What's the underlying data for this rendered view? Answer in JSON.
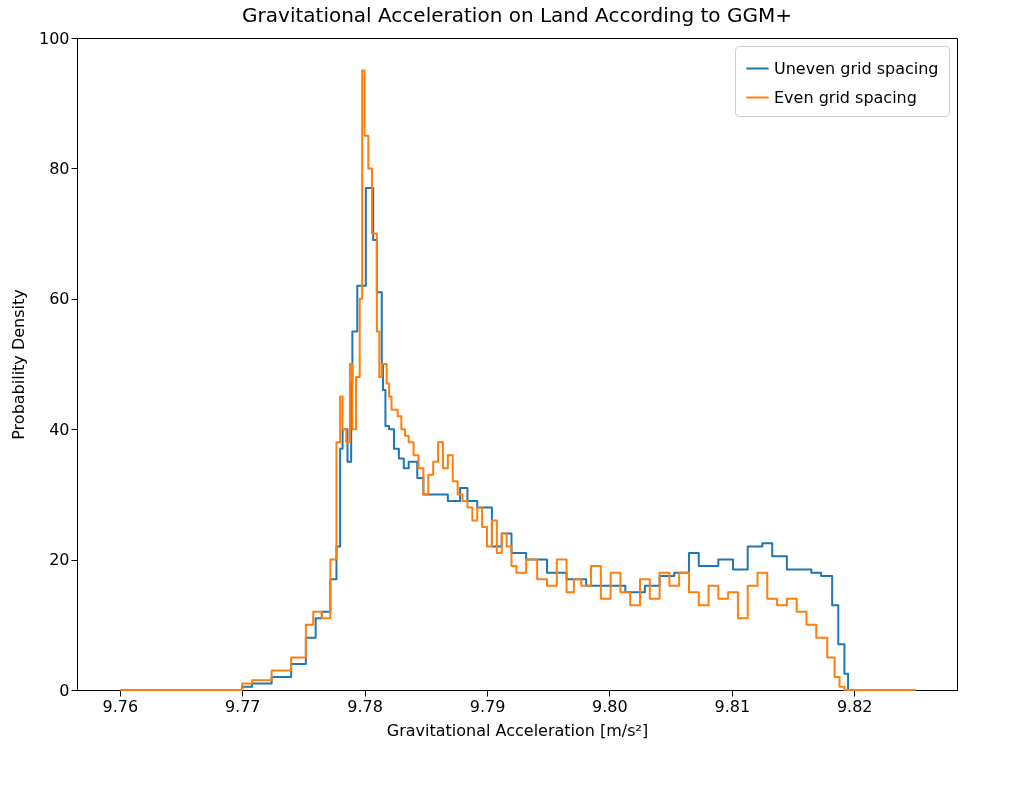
{
  "chart_data": {
    "type": "step",
    "title": "Gravitational Acceleration on Land According to GGM+",
    "xlabel": "Gravitational Acceleration [m/s²]",
    "ylabel": "Probability Density",
    "xlim": [
      9.7565,
      9.8284
    ],
    "ylim": [
      0,
      100
    ],
    "xticks": [
      9.76,
      9.77,
      9.78,
      9.79,
      {
        "value": 9.8,
        "label": "9.80"
      },
      9.81,
      9.82
    ],
    "yticks": [
      0,
      20,
      40,
      60,
      80,
      100
    ],
    "grid": false,
    "legend": "top right",
    "line_style": "solid",
    "marker": "none",
    "series": [
      {
        "name": "Uneven grid spacing",
        "color": "#1f77b4",
        "x": [
          9.76,
          9.77,
          9.7708,
          9.7724,
          9.774,
          9.7752,
          9.776,
          9.7765,
          9.7772,
          9.7777,
          9.778,
          9.7782,
          9.7786,
          9.7789,
          9.779,
          9.7794,
          9.7801,
          9.7807,
          9.781,
          9.7814,
          9.7815,
          9.7817,
          9.782,
          9.7824,
          9.7828,
          9.7832,
          9.7836,
          9.7843,
          9.7848,
          9.786,
          9.7868,
          9.7878,
          9.7884,
          9.7892,
          9.7904,
          9.7912,
          9.792,
          9.7932,
          9.7949,
          9.7965,
          9.7981,
          9.7989,
          9.8013,
          9.8029,
          9.8041,
          9.8053,
          9.8065,
          9.8073,
          9.8089,
          9.8101,
          9.8113,
          9.8125,
          9.8133,
          9.8145,
          9.8165,
          9.8173,
          9.8182,
          9.8187,
          9.8192,
          9.8195,
          9.825
        ],
        "values": [
          0,
          0.5,
          1,
          2,
          4,
          8,
          11,
          12,
          17,
          22,
          37,
          40,
          35,
          47,
          55,
          62,
          77,
          69,
          61,
          50,
          46,
          40.5,
          40,
          37,
          35.5,
          34,
          35,
          32.5,
          30,
          30,
          29,
          31,
          29,
          28,
          22,
          24,
          21,
          20,
          18,
          17,
          16,
          16,
          15,
          16,
          17.5,
          18,
          21,
          19,
          20,
          18.5,
          22,
          22.5,
          20.5,
          18.5,
          18,
          17.5,
          13,
          7,
          2.5,
          0,
          0
        ]
      },
      {
        "name": "Even grid spacing",
        "color": "#ff7f0e",
        "x": [
          9.76,
          9.77,
          9.7708,
          9.7724,
          9.774,
          9.7752,
          9.7758,
          9.7765,
          9.7772,
          9.7777,
          9.778,
          9.7782,
          9.7785,
          9.7788,
          9.779,
          9.7793,
          9.7796,
          9.7798,
          9.78,
          9.7803,
          9.7806,
          9.781,
          9.7812,
          9.7814,
          9.7818,
          9.782,
          9.7822,
          9.7827,
          9.783,
          9.7833,
          9.7836,
          9.784,
          9.7844,
          9.7848,
          9.7852,
          9.7856,
          9.786,
          9.7864,
          9.7868,
          9.7872,
          9.7876,
          9.788,
          9.7884,
          9.7888,
          9.7892,
          9.7896,
          9.79,
          9.7904,
          9.7908,
          9.7912,
          9.7916,
          9.792,
          9.7924,
          9.7932,
          9.7941,
          9.7949,
          9.7957,
          9.7965,
          9.7971,
          9.7977,
          9.7985,
          9.7993,
          9.8001,
          9.8009,
          9.8017,
          9.8025,
          9.8033,
          9.8041,
          9.8049,
          9.8057,
          9.8065,
          9.8073,
          9.8081,
          9.8089,
          9.8097,
          9.8105,
          9.8113,
          9.8121,
          9.8129,
          9.8137,
          9.8145,
          9.8153,
          9.8161,
          9.8169,
          9.8178,
          9.8184,
          9.8188,
          9.8192,
          9.8196,
          9.825
        ],
        "values": [
          0,
          1,
          1.5,
          3,
          5,
          10,
          12,
          11,
          20,
          38,
          45,
          40,
          38,
          50,
          40,
          48,
          60,
          95,
          85,
          80,
          70,
          55,
          48,
          50,
          47,
          45,
          43,
          42,
          40,
          39,
          38,
          36,
          34,
          30,
          33,
          35,
          38,
          34,
          36,
          32,
          30,
          29,
          28,
          26,
          28,
          25,
          22,
          26,
          21,
          24,
          22,
          19,
          18,
          20,
          17,
          16,
          20,
          15,
          17,
          16,
          19,
          14,
          18,
          15,
          13,
          17,
          14,
          18,
          16,
          18,
          15,
          13,
          16,
          14,
          15,
          11,
          16,
          18,
          14,
          13,
          14,
          12,
          10,
          8,
          5,
          2,
          0.5,
          0,
          0,
          0
        ]
      }
    ]
  }
}
